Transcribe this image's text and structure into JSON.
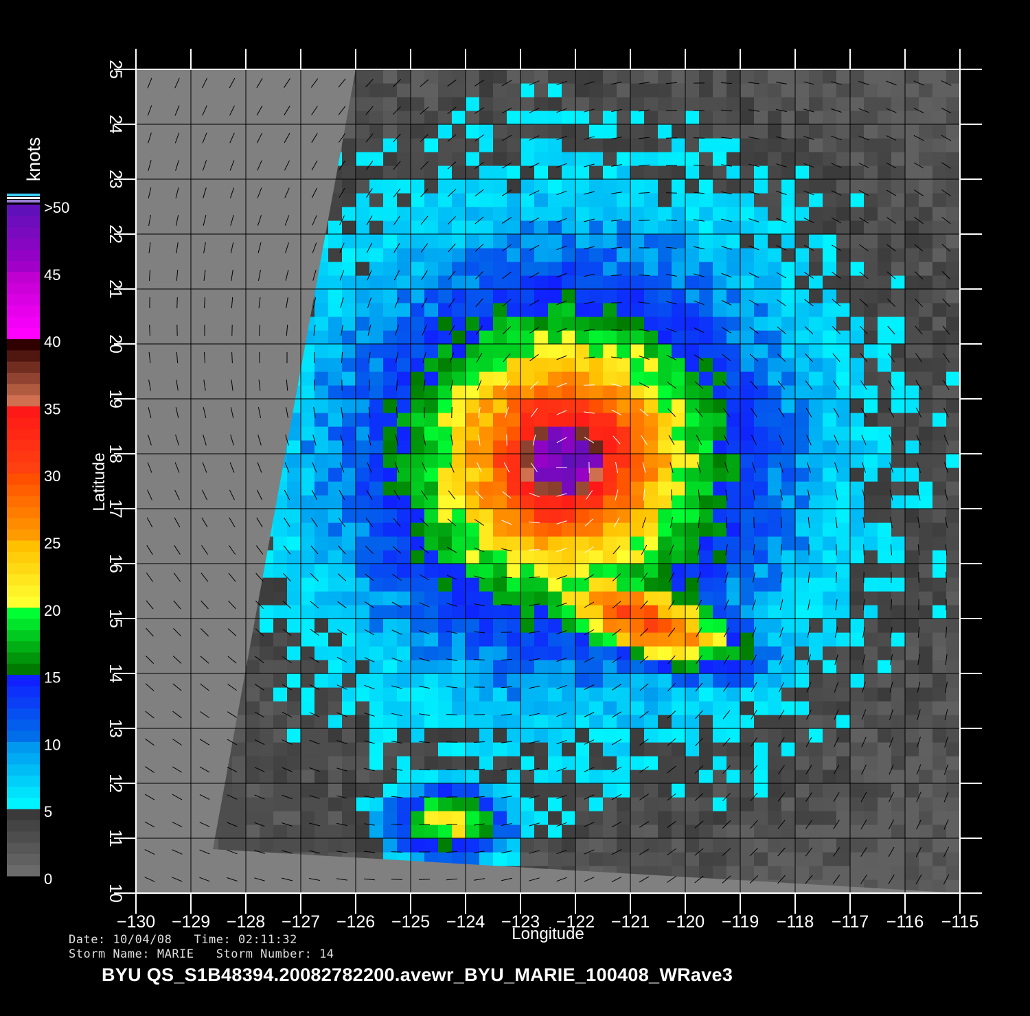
{
  "storm": {
    "date_label": "Date:",
    "date": "10/04/08",
    "time_label": "Time:",
    "time": "02:11:32",
    "name_label": "Storm Name:",
    "name": "MARIE",
    "number_label": "Storm Number:",
    "number": "14"
  },
  "filename": "BYU QS_S1B48394.20082782200.avewr_BYU_MARIE_100408_WRave3",
  "colorbar": {
    "unit_label": "knots",
    "tick_labels": [
      ">50",
      "45",
      "40",
      "35",
      "30",
      "25",
      "20",
      "15",
      "10",
      "5",
      "0"
    ],
    "bands": [
      {
        "label": "0-5",
        "colors": [
          "#6a6a6a",
          "#3a3a3a"
        ]
      },
      {
        "label": "5-10",
        "colors": [
          "#00f4ff",
          "#0099f0"
        ]
      },
      {
        "label": "10-15",
        "colors": [
          "#006ee8",
          "#1020ff"
        ]
      },
      {
        "label": "15-20",
        "colors": [
          "#007a00",
          "#00ff33"
        ]
      },
      {
        "label": "20-25",
        "colors": [
          "#ffff30",
          "#ffc000"
        ]
      },
      {
        "label": "25-30",
        "colors": [
          "#ff9a00",
          "#ff5000"
        ]
      },
      {
        "label": "30-35",
        "colors": [
          "#ff4010",
          "#ff1818"
        ]
      },
      {
        "label": "35-40",
        "colors": [
          "#d07050",
          "#300000"
        ]
      },
      {
        "label": "40-45",
        "colors": [
          "#ff00ff",
          "#c000d0"
        ]
      },
      {
        "label": "45-50",
        "colors": [
          "#a000c8",
          "#6010b8"
        ]
      }
    ]
  },
  "chart_data": {
    "type": "heatmap",
    "title": "",
    "xlabel": "Longitude",
    "ylabel": "Latitude",
    "xlim": [
      -130,
      -115
    ],
    "ylim": [
      10,
      25
    ],
    "x_ticks": [
      -130,
      -129,
      -128,
      -127,
      -126,
      -125,
      -124,
      -123,
      -122,
      -121,
      -120,
      -119,
      -118,
      -117,
      -116,
      -115
    ],
    "y_ticks": [
      10,
      11,
      12,
      13,
      14,
      15,
      16,
      17,
      18,
      19,
      20,
      21,
      22,
      23,
      24,
      25
    ],
    "x_tick_labels": [
      "−130",
      "−129",
      "−128",
      "−127",
      "−126",
      "−125",
      "−124",
      "−123",
      "−122",
      "−121",
      "−120",
      "−119",
      "−118",
      "−117",
      "−116",
      "−115"
    ],
    "y_tick_labels": [
      "10",
      "11",
      "12",
      "13",
      "14",
      "15",
      "16",
      "17",
      "18",
      "19",
      "20",
      "21",
      "22",
      "23",
      "24",
      "25"
    ],
    "grid": true,
    "value_unit": "knots",
    "value_range": [
      0,
      50
    ],
    "storm_center": {
      "lon": -122.2,
      "lat": 17.9,
      "peak_speed": 50
    },
    "swath_corners": [
      [
        -126,
        25
      ],
      [
        -115,
        25
      ],
      [
        -115,
        10
      ],
      [
        -128.6,
        10.8
      ]
    ],
    "no_data_color": "#808080"
  }
}
